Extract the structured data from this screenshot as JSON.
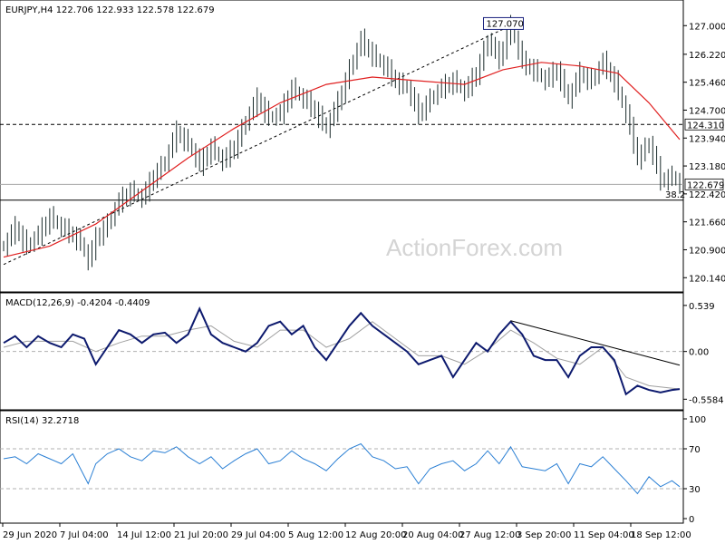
{
  "chart_data": [
    {
      "type": "candlestick",
      "symbol_header": "EURJPY,H4  122.706 122.933 122.578 122.679",
      "ylim": [
        119.9,
        127.5
      ],
      "y_ticks": [
        "127.000",
        "126.220",
        "125.460",
        "124.700",
        "123.940",
        "123.180",
        "122.420",
        "121.660",
        "120.900",
        "120.140"
      ],
      "y_tick_values": [
        127.0,
        126.22,
        125.46,
        124.7,
        123.94,
        123.18,
        122.42,
        121.66,
        120.9,
        120.14
      ],
      "x_ticks": [
        "29 Jun 2020",
        "7 Jul 04:00",
        "14 Jul 12:00",
        "21 Jul 20:00",
        "29 Jul 04:00",
        "5 Aug 12:00",
        "12 Aug 20:00",
        "20 Aug 04:00",
        "27 Aug 12:00",
        "3 Sep 20:00",
        "11 Sep 04:00",
        "18 Sep 12:00"
      ],
      "close_path": [
        [
          0,
          121.0
        ],
        [
          3,
          121.5
        ],
        [
          6,
          121.0
        ],
        [
          9,
          121.3
        ],
        [
          12,
          121.8
        ],
        [
          15,
          121.5
        ],
        [
          18,
          121.3
        ],
        [
          20,
          121.1
        ],
        [
          22,
          120.6
        ],
        [
          24,
          121.2
        ],
        [
          27,
          121.6
        ],
        [
          30,
          122.2
        ],
        [
          33,
          122.5
        ],
        [
          36,
          122.3
        ],
        [
          39,
          122.9
        ],
        [
          42,
          123.3
        ],
        [
          45,
          124.1
        ],
        [
          48,
          123.8
        ],
        [
          51,
          123.2
        ],
        [
          54,
          123.7
        ],
        [
          57,
          123.3
        ],
        [
          60,
          123.7
        ],
        [
          63,
          124.4
        ],
        [
          66,
          125.0
        ],
        [
          69,
          124.5
        ],
        [
          72,
          124.6
        ],
        [
          75,
          125.3
        ],
        [
          78,
          125.0
        ],
        [
          81,
          124.7
        ],
        [
          84,
          124.2
        ],
        [
          87,
          124.9
        ],
        [
          90,
          125.8
        ],
        [
          93,
          126.6
        ],
        [
          96,
          126.2
        ],
        [
          99,
          125.9
        ],
        [
          102,
          125.5
        ],
        [
          105,
          125.3
        ],
        [
          108,
          124.6
        ],
        [
          111,
          125.0
        ],
        [
          114,
          125.3
        ],
        [
          117,
          125.5
        ],
        [
          120,
          125.2
        ],
        [
          123,
          125.7
        ],
        [
          126,
          126.6
        ],
        [
          129,
          126.1
        ],
        [
          132,
          127.0
        ],
        [
          135,
          126.0
        ],
        [
          138,
          125.8
        ],
        [
          141,
          125.5
        ],
        [
          144,
          125.8
        ],
        [
          147,
          125.0
        ],
        [
          150,
          125.7
        ],
        [
          153,
          125.5
        ],
        [
          156,
          126.0
        ],
        [
          159,
          125.5
        ],
        [
          162,
          124.6
        ],
        [
          165,
          123.4
        ],
        [
          168,
          123.8
        ],
        [
          171,
          122.8
        ],
        [
          174,
          122.9
        ],
        [
          176,
          122.68
        ]
      ],
      "ma_path": [
        [
          0,
          120.7
        ],
        [
          12,
          121.0
        ],
        [
          24,
          121.6
        ],
        [
          36,
          122.5
        ],
        [
          48,
          123.4
        ],
        [
          60,
          124.2
        ],
        [
          72,
          124.9
        ],
        [
          84,
          125.4
        ],
        [
          96,
          125.6
        ],
        [
          108,
          125.5
        ],
        [
          120,
          125.4
        ],
        [
          130,
          125.8
        ],
        [
          140,
          126.0
        ],
        [
          150,
          125.9
        ],
        [
          160,
          125.7
        ],
        [
          168,
          124.9
        ],
        [
          176,
          123.9
        ]
      ],
      "trendline": [
        [
          0,
          120.5
        ],
        [
          132,
          127.0
        ]
      ],
      "horizontal_levels": [
        {
          "price": 124.31,
          "label": "124.310",
          "style": "dashed"
        },
        {
          "price": 122.679,
          "label": "122.679",
          "style": "solid-grey"
        },
        {
          "price": 122.25,
          "label": "38.2",
          "style": "solid"
        }
      ],
      "top_marker": {
        "price": 127.07,
        "label": "127.070",
        "x": 132
      },
      "watermark": "ActionForex.com"
    },
    {
      "type": "line",
      "header": "MACD(12,26,9) -0.4204 -0.4409",
      "ylim": [
        -0.64,
        0.58
      ],
      "y_ticks": [
        "0.539",
        "0.00",
        "-0.5584"
      ],
      "y_tick_values": [
        0.539,
        0.0,
        -0.5584
      ],
      "macd": [
        [
          0,
          0.1
        ],
        [
          3,
          0.18
        ],
        [
          6,
          0.05
        ],
        [
          9,
          0.18
        ],
        [
          12,
          0.1
        ],
        [
          15,
          0.05
        ],
        [
          18,
          0.2
        ],
        [
          21,
          0.15
        ],
        [
          24,
          -0.15
        ],
        [
          27,
          0.05
        ],
        [
          30,
          0.25
        ],
        [
          33,
          0.2
        ],
        [
          36,
          0.1
        ],
        [
          39,
          0.2
        ],
        [
          42,
          0.22
        ],
        [
          45,
          0.1
        ],
        [
          48,
          0.2
        ],
        [
          51,
          0.5
        ],
        [
          54,
          0.2
        ],
        [
          57,
          0.1
        ],
        [
          60,
          0.05
        ],
        [
          63,
          0.0
        ],
        [
          66,
          0.1
        ],
        [
          69,
          0.3
        ],
        [
          72,
          0.35
        ],
        [
          75,
          0.2
        ],
        [
          78,
          0.3
        ],
        [
          81,
          0.05
        ],
        [
          84,
          -0.1
        ],
        [
          87,
          0.1
        ],
        [
          90,
          0.3
        ],
        [
          93,
          0.45
        ],
        [
          96,
          0.3
        ],
        [
          99,
          0.2
        ],
        [
          102,
          0.1
        ],
        [
          105,
          0.0
        ],
        [
          108,
          -0.15
        ],
        [
          111,
          -0.1
        ],
        [
          114,
          -0.05
        ],
        [
          117,
          -0.3
        ],
        [
          120,
          -0.1
        ],
        [
          123,
          0.1
        ],
        [
          126,
          0.0
        ],
        [
          129,
          0.2
        ],
        [
          132,
          0.35
        ],
        [
          135,
          0.2
        ],
        [
          138,
          -0.05
        ],
        [
          141,
          -0.1
        ],
        [
          144,
          -0.1
        ],
        [
          147,
          -0.3
        ],
        [
          150,
          -0.05
        ],
        [
          153,
          0.05
        ],
        [
          156,
          0.05
        ],
        [
          159,
          -0.1
        ],
        [
          162,
          -0.5
        ],
        [
          165,
          -0.4
        ],
        [
          168,
          -0.45
        ],
        [
          171,
          -0.48
        ],
        [
          174,
          -0.45
        ],
        [
          176,
          -0.44
        ]
      ],
      "signal": [
        [
          0,
          0.05
        ],
        [
          6,
          0.12
        ],
        [
          12,
          0.12
        ],
        [
          18,
          0.12
        ],
        [
          24,
          0.0
        ],
        [
          30,
          0.1
        ],
        [
          36,
          0.18
        ],
        [
          42,
          0.18
        ],
        [
          48,
          0.25
        ],
        [
          54,
          0.3
        ],
        [
          60,
          0.12
        ],
        [
          66,
          0.05
        ],
        [
          72,
          0.25
        ],
        [
          78,
          0.25
        ],
        [
          84,
          0.05
        ],
        [
          90,
          0.15
        ],
        [
          96,
          0.35
        ],
        [
          102,
          0.15
        ],
        [
          108,
          -0.05
        ],
        [
          114,
          -0.05
        ],
        [
          120,
          -0.15
        ],
        [
          126,
          0.02
        ],
        [
          132,
          0.25
        ],
        [
          138,
          0.1
        ],
        [
          144,
          -0.08
        ],
        [
          150,
          -0.15
        ],
        [
          156,
          0.05
        ],
        [
          162,
          -0.3
        ],
        [
          168,
          -0.4
        ],
        [
          176,
          -0.44
        ]
      ],
      "trendline": [
        [
          132,
          0.36
        ],
        [
          176,
          -0.16
        ]
      ]
    },
    {
      "type": "line",
      "header": "RSI(14) 32.2718",
      "ylim": [
        0,
        100
      ],
      "y_ticks": [
        "100",
        "70",
        "30",
        "0"
      ],
      "y_tick_values": [
        100,
        70,
        30,
        0
      ],
      "levels": [
        70,
        30
      ],
      "rsi": [
        [
          0,
          60
        ],
        [
          3,
          62
        ],
        [
          6,
          55
        ],
        [
          9,
          65
        ],
        [
          12,
          60
        ],
        [
          15,
          55
        ],
        [
          18,
          65
        ],
        [
          20,
          50
        ],
        [
          22,
          35
        ],
        [
          24,
          55
        ],
        [
          27,
          65
        ],
        [
          30,
          70
        ],
        [
          33,
          62
        ],
        [
          36,
          58
        ],
        [
          39,
          68
        ],
        [
          42,
          66
        ],
        [
          45,
          72
        ],
        [
          48,
          62
        ],
        [
          51,
          55
        ],
        [
          54,
          62
        ],
        [
          57,
          50
        ],
        [
          60,
          58
        ],
        [
          63,
          65
        ],
        [
          66,
          70
        ],
        [
          69,
          55
        ],
        [
          72,
          58
        ],
        [
          75,
          68
        ],
        [
          78,
          60
        ],
        [
          81,
          55
        ],
        [
          84,
          48
        ],
        [
          87,
          60
        ],
        [
          90,
          70
        ],
        [
          93,
          75
        ],
        [
          96,
          62
        ],
        [
          99,
          58
        ],
        [
          102,
          50
        ],
        [
          105,
          52
        ],
        [
          108,
          35
        ],
        [
          111,
          50
        ],
        [
          114,
          55
        ],
        [
          117,
          58
        ],
        [
          120,
          48
        ],
        [
          123,
          55
        ],
        [
          126,
          68
        ],
        [
          129,
          55
        ],
        [
          132,
          72
        ],
        [
          135,
          52
        ],
        [
          138,
          50
        ],
        [
          141,
          48
        ],
        [
          144,
          55
        ],
        [
          147,
          35
        ],
        [
          150,
          55
        ],
        [
          153,
          52
        ],
        [
          156,
          62
        ],
        [
          159,
          50
        ],
        [
          162,
          38
        ],
        [
          165,
          25
        ],
        [
          168,
          42
        ],
        [
          171,
          32
        ],
        [
          174,
          38
        ],
        [
          176,
          32
        ]
      ]
    }
  ]
}
